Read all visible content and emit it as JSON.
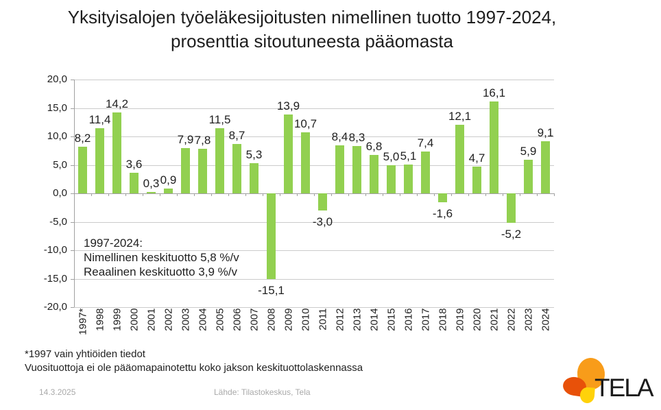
{
  "title": {
    "line1": "Yksityisalojen työeläkesijoitusten nimellinen tuotto 1997-2024,",
    "line2": "prosenttia sitoutuneesta pääomasta"
  },
  "chart_data": {
    "type": "bar",
    "title": "Yksityisalojen työeläkesijoitusten nimellinen tuotto 1997-2024, prosenttia sitoutuneesta pääomasta",
    "xlabel": "",
    "ylabel": "",
    "grid": true,
    "legend": "none",
    "ylim": [
      -20,
      20
    ],
    "ytick_step": 5,
    "ytick_labels": [
      "20,0",
      "15,0",
      "10,0",
      "5,0",
      "0,0",
      "-5,0",
      "-10,0",
      "-15,0",
      "-20,0"
    ],
    "categories": [
      "1997*",
      "1998",
      "1999",
      "2000",
      "2001",
      "2002",
      "2003",
      "2004",
      "2005",
      "2006",
      "2007",
      "2008",
      "2009",
      "2010",
      "2011",
      "2012",
      "2013",
      "2014",
      "2015",
      "2016",
      "2017",
      "2018",
      "2019",
      "2020",
      "2021",
      "2022",
      "2023",
      "2024"
    ],
    "values": [
      8.2,
      11.4,
      14.2,
      3.6,
      0.3,
      0.9,
      7.9,
      7.8,
      11.5,
      8.7,
      5.3,
      -15.1,
      13.9,
      10.7,
      -3.0,
      8.4,
      8.3,
      6.8,
      5.0,
      5.1,
      7.4,
      -1.6,
      12.1,
      4.7,
      16.1,
      -5.2,
      5.9,
      9.1
    ],
    "value_labels": [
      "8,2",
      "11,4",
      "14,2",
      "3,6",
      "0,3",
      "0,9",
      "7,9",
      "7,8",
      "11,5",
      "8,7",
      "5,3",
      "-15,1",
      "13,9",
      "10,7",
      "-3,0",
      "8,4",
      "8,3",
      "6,8",
      "5,0",
      "5,1",
      "7,4",
      "-1,6",
      "12,1",
      "4,7",
      "16,1",
      "-5,2",
      "5,9",
      "9,1"
    ],
    "bar_color": "#92D050",
    "annotation": {
      "line1": "1997-2024:",
      "line2": "Nimellinen keskituotto 5,8 %/v",
      "line3": "Reaalinen keskituotto 3,9 %/v"
    }
  },
  "footnotes": {
    "line1": "*1997 vain yhtiöiden tiedot",
    "line2": "Vuosituottoja ei ole pääomapainotettu koko jakson keskituottolaskennassa"
  },
  "footer": {
    "date": "14.3.2025",
    "source": "Lähde: Tilastokeskus, Tela",
    "logo_text": "TELA"
  },
  "colors": {
    "bar": "#92D050",
    "gridline": "#cbcbcb",
    "axis": "#a0a0a0",
    "footer_text": "#a9a9a9",
    "logo_orange": "#F89C1A",
    "logo_red": "#E85109",
    "logo_yellow": "#FFD20A"
  }
}
